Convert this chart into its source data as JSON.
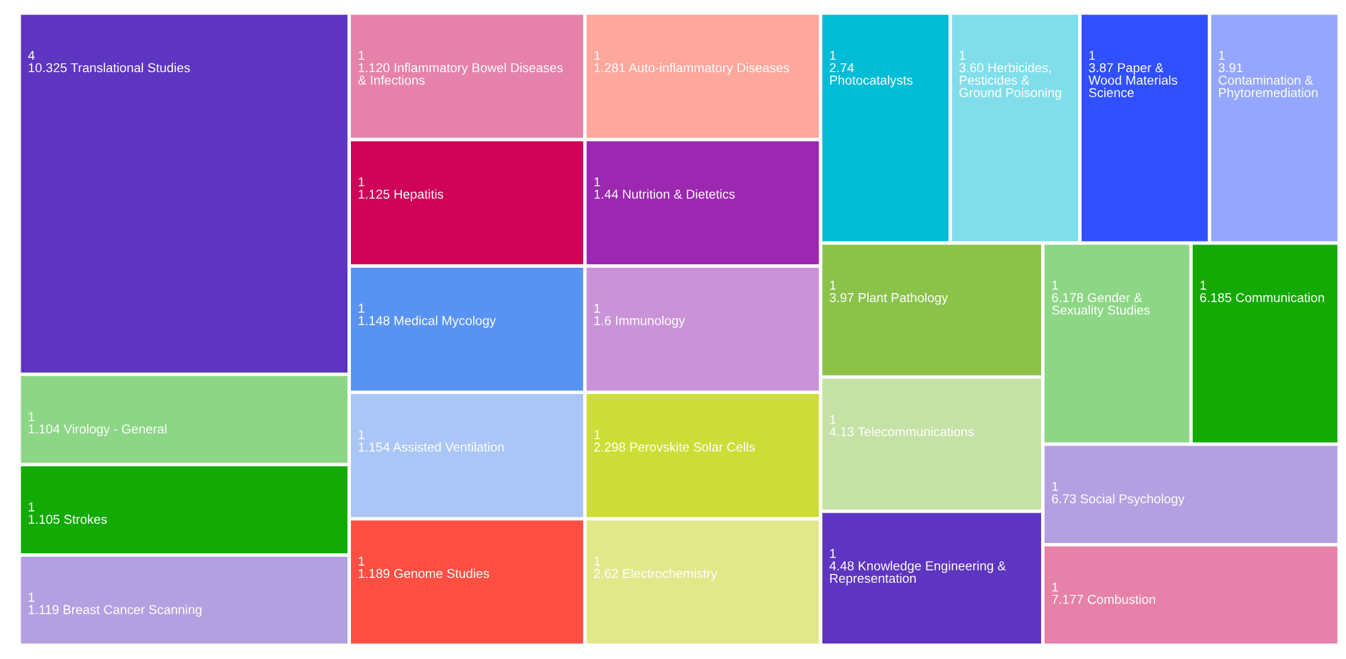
{
  "chart_data": {
    "type": "other",
    "data_labels": true,
    "categories": [
      "10.325 Translational Studies",
      "1.104 Virology - General",
      "1.105 Strokes",
      "1.119 Breast Cancer Scanning",
      "1.120 Inflammatory Bowel Diseases & Infections",
      "1.125 Hepatitis",
      "1.148 Medical Mycology",
      "1.154 Assisted Ventilation",
      "1.189 Genome Studies",
      "1.281 Auto-inflammatory Diseases",
      "1.44 Nutrition & Dietetics",
      "1.6 Immunology",
      "2.298 Perovskite Solar Cells",
      "2.62 Electrochemistry",
      "2.74 Photocatalysts",
      "3.60 Herbicides, Pesticides & Ground Poisoning",
      "3.87 Paper & Wood Materials Science",
      "3.91 Contamination & Phytoremediation",
      "3.97 Plant Pathology",
      "4.13 Telecommunications",
      "4.48 Knowledge Engineering & Representation",
      "6.178 Gender & Sexuality Studies",
      "6.185 Communication",
      "6.73 Social Psychology",
      "7.177 Combustion"
    ],
    "values": [
      4,
      1,
      1,
      1,
      1,
      1,
      1,
      1,
      1,
      1,
      1,
      1,
      1,
      1,
      1,
      1,
      1,
      1,
      1,
      1,
      1,
      1,
      1,
      1,
      1
    ],
    "colors": [
      "#5e35c0",
      "#8cd685",
      "#13aa06",
      "#b3a0e0",
      "#e681aa",
      "#cf0357",
      "#5993f2",
      "#a9c6f7",
      "#ff4f42",
      "#ffa79c",
      "#9c27b0",
      "#ca93d8",
      "#cddd37",
      "#e1e88a",
      "#00bcd4",
      "#80deea",
      "#304ffe",
      "#94a6fe",
      "#8bc34a",
      "#c5e1a5",
      "#5e35c0",
      "#8cd685",
      "#13aa06",
      "#b3a0e0",
      "#e681aa"
    ]
  }
}
